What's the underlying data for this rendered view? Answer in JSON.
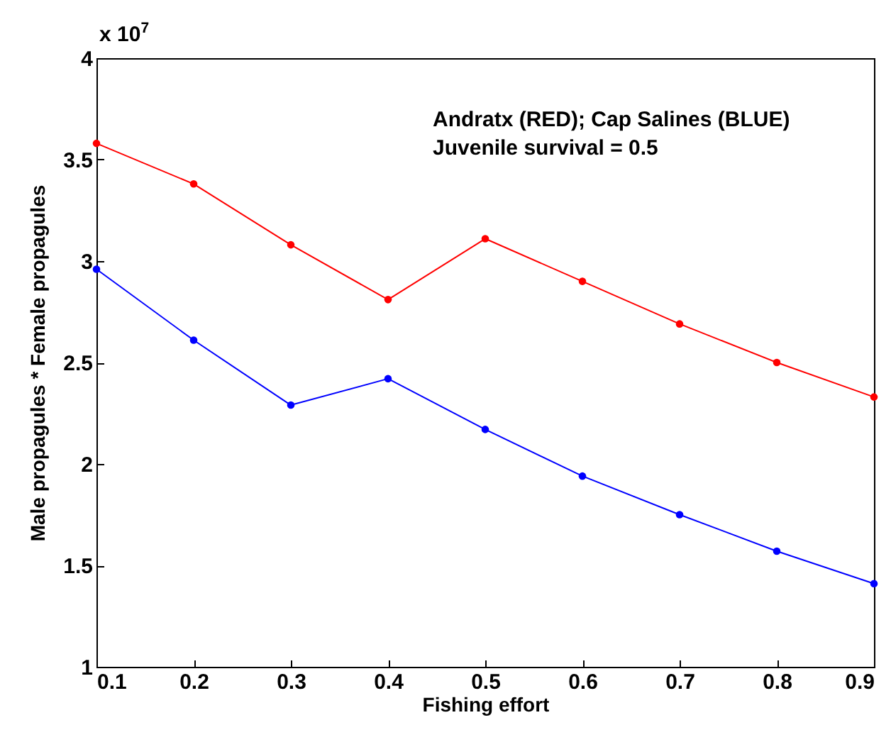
{
  "chart_data": {
    "type": "line",
    "xlabel": "Fishing effort",
    "ylabel": "Male propagules * Female propagules",
    "x": [
      0.1,
      0.2,
      0.3,
      0.4,
      0.5,
      0.6,
      0.7,
      0.8,
      0.9
    ],
    "series": [
      {
        "color": "#ff0000",
        "values": [
          3.58,
          3.38,
          3.08,
          2.81,
          3.11,
          2.9,
          2.69,
          2.5,
          2.33
        ]
      },
      {
        "color": "#0000ff",
        "values": [
          2.96,
          2.61,
          2.29,
          2.42,
          2.17,
          1.94,
          1.75,
          1.57,
          1.41
        ]
      }
    ],
    "xlim": [
      0.1,
      0.9
    ],
    "xticks": [
      0.1,
      0.2,
      0.3,
      0.4,
      0.5,
      0.6,
      0.7,
      0.8,
      0.9
    ],
    "ylim": [
      1,
      4
    ],
    "yticks": [
      1,
      1.5,
      2,
      2.5,
      3,
      3.5,
      4
    ],
    "marker": "circle",
    "line_style": "solid",
    "grid": false,
    "legend": false,
    "annotations": [
      "x 10$^{7}$",
      "Andratx (RED); Cap Salines (BLUE)",
      "Juvenile survival = 0.5"
    ]
  }
}
